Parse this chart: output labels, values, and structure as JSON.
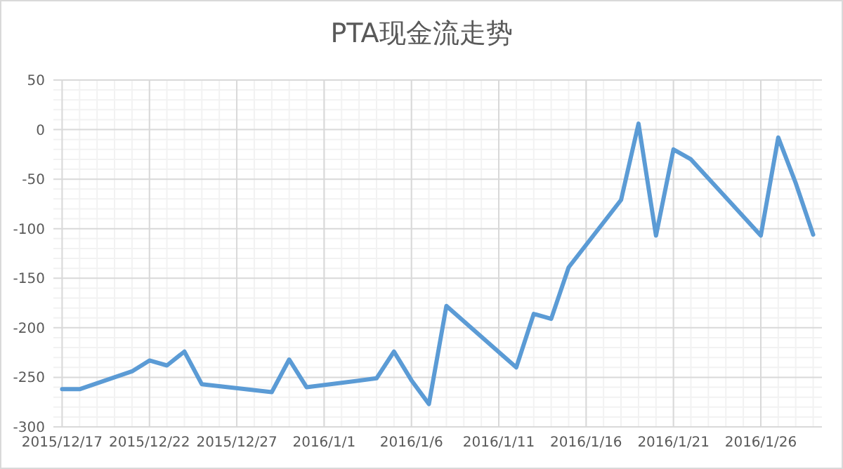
{
  "chart_data": {
    "type": "line",
    "title": "PTA现金流走势",
    "x": [
      "2015-12-17",
      "2015-12-18",
      "2015-12-21",
      "2015-12-22",
      "2015-12-23",
      "2015-12-24",
      "2015-12-25",
      "2015-12-29",
      "2015-12-30",
      "2015-12-31",
      "2016-01-04",
      "2016-01-05",
      "2016-01-06",
      "2016-01-07",
      "2016-01-08",
      "2016-01-12",
      "2016-01-13",
      "2016-01-14",
      "2016-01-15",
      "2016-01-18",
      "2016-01-19",
      "2016-01-20",
      "2016-01-21",
      "2016-01-22",
      "2016-01-26",
      "2016-01-27",
      "2016-01-28",
      "2016-01-29"
    ],
    "series": [
      {
        "color": "#5b9bd5",
        "values": [
          -262,
          -262,
          -244,
          -233,
          -238,
          -224,
          -257,
          -265,
          -232,
          -260,
          -251,
          -224,
          -253,
          -277,
          -178,
          -240,
          -186,
          -191,
          -139,
          -71,
          6,
          -107,
          -20,
          -30,
          -107,
          -8,
          -54,
          -106
        ]
      }
    ],
    "xlim": [
      "2015-12-16T12:00",
      "2016-01-29T12:00"
    ],
    "xticks": [
      {
        "value": "2015-12-17",
        "label": "2015/12/17"
      },
      {
        "value": "2015-12-22",
        "label": "2015/12/22"
      },
      {
        "value": "2015-12-27",
        "label": "2015/12/27"
      },
      {
        "value": "2016-01-01",
        "label": "2016/1/1"
      },
      {
        "value": "2016-01-06",
        "label": "2016/1/6"
      },
      {
        "value": "2016-01-11",
        "label": "2016/1/11"
      },
      {
        "value": "2016-01-16",
        "label": "2016/1/16"
      },
      {
        "value": "2016-01-21",
        "label": "2016/1/21"
      },
      {
        "value": "2016-01-26",
        "label": "2016/1/26"
      }
    ],
    "ylim": [
      -300,
      50
    ],
    "yticks": [
      -300,
      -250,
      -200,
      -150,
      -100,
      -50,
      0,
      50
    ],
    "grid": true,
    "marker": "none",
    "line_style": "solid"
  }
}
